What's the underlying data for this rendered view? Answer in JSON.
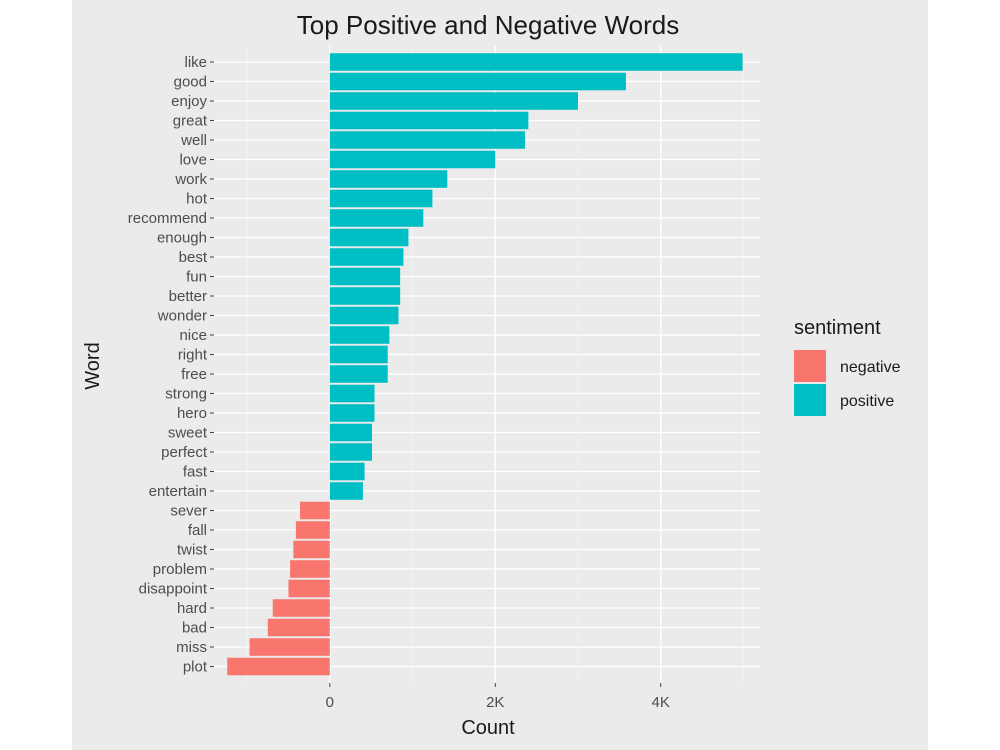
{
  "chart_data": {
    "type": "bar",
    "orientation": "horizontal",
    "title": "Top Positive and Negative Words",
    "xlabel": "Count",
    "ylabel": "Word",
    "xlim": [
      -1400,
      5200
    ],
    "xticks": [
      {
        "value": 0,
        "label": "0"
      },
      {
        "value": 2000,
        "label": "2K"
      },
      {
        "value": 4000,
        "label": "4K"
      }
    ],
    "grid": true,
    "legend": {
      "title": "sentiment",
      "position": "right",
      "items": [
        {
          "label": "negative",
          "color": "#f8766d"
        },
        {
          "label": "positive",
          "color": "#00bfc4"
        }
      ]
    },
    "categories": [
      "like",
      "good",
      "enjoy",
      "great",
      "well",
      "love",
      "work",
      "hot",
      "recommend",
      "enough",
      "best",
      "fun",
      "better",
      "wonder",
      "nice",
      "right",
      "free",
      "strong",
      "hero",
      "sweet",
      "perfect",
      "fast",
      "entertain",
      "sever",
      "fall",
      "twist",
      "problem",
      "disappoint",
      "hard",
      "bad",
      "miss",
      "plot"
    ],
    "values": [
      4990,
      3580,
      3000,
      2400,
      2360,
      2000,
      1420,
      1240,
      1130,
      950,
      890,
      850,
      850,
      830,
      720,
      700,
      700,
      540,
      540,
      510,
      510,
      420,
      400,
      -360,
      -410,
      -440,
      -480,
      -500,
      -690,
      -750,
      -970,
      -1240
    ],
    "sentiment": [
      "positive",
      "positive",
      "positive",
      "positive",
      "positive",
      "positive",
      "positive",
      "positive",
      "positive",
      "positive",
      "positive",
      "positive",
      "positive",
      "positive",
      "positive",
      "positive",
      "positive",
      "positive",
      "positive",
      "positive",
      "positive",
      "positive",
      "positive",
      "negative",
      "negative",
      "negative",
      "negative",
      "negative",
      "negative",
      "negative",
      "negative",
      "negative"
    ]
  }
}
